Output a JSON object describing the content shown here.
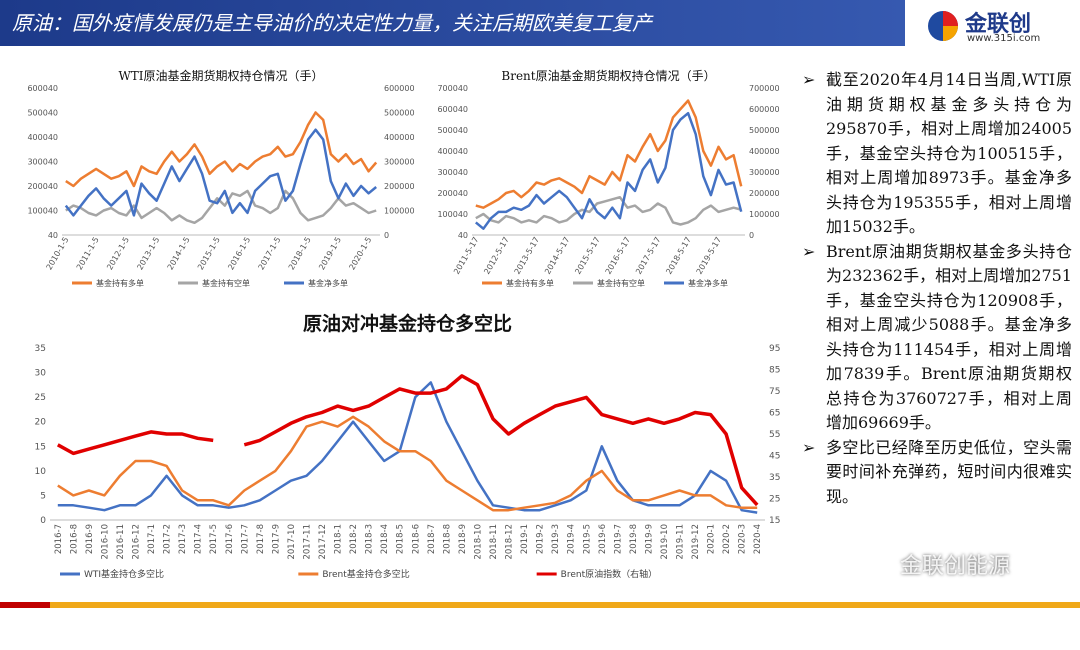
{
  "header": {
    "title": "原油：国外疫情发展仍是主导油价的决定性力量，关注后期欧美复工复产",
    "logo": "金联创",
    "site": "www.315i.com"
  },
  "bullets": [
    "截至2020年4月14日当周,WTI原油期货期权基金多头持仓为295870手，相对上周增加24005手，基金空头持仓为100515手，相对上周增加8973手。基金净多头持仓为195355手，相对上周增加15032手。",
    "Brent原油期货期权基金多头持仓为232362手，相对上周增加2751手，基金空头持仓为120908手，相对上周减少5088手。基金净多头持仓为111454手，相对上周增加7839手。Brent原油期货期权总持仓为3760727手，相对上周增加69669手。",
    "多空比已经降至历史低位，空头需要时间补充弹药，短时间内很难实现。"
  ],
  "watermark": "金联创能源",
  "chart_data": [
    {
      "type": "line",
      "title": "WTI原油基金期货期权持仓情况（手）",
      "categories": [
        "2010-1-5",
        null,
        null,
        null,
        "2011-1-5",
        null,
        null,
        null,
        "2012-1-5",
        null,
        null,
        null,
        "2013-1-5",
        null,
        null,
        null,
        "2014-1-5",
        null,
        null,
        null,
        "2015-1-5",
        null,
        null,
        null,
        "2016-1-5",
        null,
        null,
        null,
        "2017-1-5",
        null,
        null,
        null,
        "2018-1-5",
        null,
        null,
        null,
        "2019-1-5",
        null,
        null,
        null,
        "2020-1-5",
        null
      ],
      "ylim": [
        40,
        600040
      ],
      "yticks": [
        40,
        100040,
        200040,
        300040,
        400040,
        500040,
        600040
      ],
      "y2lim": [
        0,
        600000
      ],
      "y2ticks": [
        0,
        100000,
        200000,
        300000,
        400000,
        500000,
        600000
      ],
      "grid": false,
      "series": [
        {
          "name": "基金持有多单",
          "color": "#ed7d31",
          "values": [
            220000,
            200000,
            230000,
            250000,
            270000,
            250000,
            230000,
            240000,
            260000,
            200000,
            280000,
            260000,
            250000,
            300000,
            340000,
            300000,
            330000,
            370000,
            320000,
            250000,
            280000,
            300000,
            260000,
            290000,
            270000,
            300000,
            320000,
            330000,
            360000,
            320000,
            330000,
            380000,
            450000,
            500000,
            470000,
            330000,
            300000,
            330000,
            290000,
            310000,
            260000,
            296000
          ]
        },
        {
          "name": "基金持有空单",
          "color": "#a5a5a5",
          "values": [
            100000,
            120000,
            110000,
            90000,
            80000,
            100000,
            110000,
            90000,
            80000,
            120000,
            70000,
            90000,
            110000,
            90000,
            60000,
            80000,
            60000,
            50000,
            70000,
            110000,
            150000,
            120000,
            170000,
            160000,
            180000,
            120000,
            110000,
            90000,
            110000,
            180000,
            150000,
            90000,
            60000,
            70000,
            80000,
            110000,
            150000,
            120000,
            130000,
            110000,
            90000,
            100000
          ]
        },
        {
          "name": "基金净多单",
          "color": "#4472c4",
          "axis": "y2",
          "values": [
            120000,
            80000,
            120000,
            160000,
            190000,
            150000,
            120000,
            150000,
            180000,
            80000,
            210000,
            170000,
            140000,
            210000,
            280000,
            220000,
            270000,
            320000,
            250000,
            140000,
            130000,
            180000,
            90000,
            130000,
            90000,
            180000,
            210000,
            240000,
            250000,
            140000,
            180000,
            290000,
            390000,
            430000,
            390000,
            220000,
            150000,
            210000,
            160000,
            200000,
            170000,
            196000
          ]
        }
      ]
    },
    {
      "type": "line",
      "title": "Brent原油基金期货期权持仓情况（手）",
      "categories": [
        "2011-5-17",
        null,
        null,
        null,
        "2012-5-17",
        null,
        null,
        null,
        "2013-5-17",
        null,
        null,
        null,
        "2014-5-17",
        null,
        null,
        null,
        "2015-5-17",
        null,
        null,
        null,
        "2016-5-17",
        null,
        null,
        null,
        "2017-5-17",
        null,
        null,
        null,
        "2018-5-17",
        null,
        null,
        null,
        "2019-5-17",
        null,
        null,
        null
      ],
      "ylim": [
        40,
        700040
      ],
      "yticks": [
        40,
        100040,
        200040,
        300040,
        400040,
        500040,
        600040,
        700040
      ],
      "y2lim": [
        0,
        700000
      ],
      "y2ticks": [
        0,
        100000,
        200000,
        300000,
        400000,
        500000,
        600000,
        700000
      ],
      "grid": false,
      "series": [
        {
          "name": "基金持有多单",
          "color": "#ed7d31",
          "values": [
            140000,
            130000,
            150000,
            170000,
            200000,
            210000,
            180000,
            210000,
            250000,
            240000,
            260000,
            270000,
            250000,
            230000,
            200000,
            280000,
            260000,
            240000,
            300000,
            260000,
            380000,
            350000,
            420000,
            480000,
            400000,
            450000,
            560000,
            600000,
            640000,
            560000,
            400000,
            330000,
            420000,
            360000,
            380000,
            232000
          ]
        },
        {
          "name": "基金持有空单",
          "color": "#a5a5a5",
          "values": [
            80000,
            100000,
            70000,
            60000,
            90000,
            80000,
            60000,
            70000,
            60000,
            90000,
            80000,
            60000,
            70000,
            100000,
            120000,
            110000,
            150000,
            160000,
            170000,
            180000,
            130000,
            140000,
            110000,
            120000,
            150000,
            130000,
            60000,
            50000,
            60000,
            80000,
            120000,
            140000,
            110000,
            120000,
            130000,
            121000
          ]
        },
        {
          "name": "基金净多单",
          "color": "#4472c4",
          "axis": "y2",
          "values": [
            60000,
            30000,
            80000,
            110000,
            110000,
            130000,
            120000,
            140000,
            190000,
            150000,
            180000,
            210000,
            180000,
            130000,
            80000,
            170000,
            110000,
            80000,
            130000,
            80000,
            250000,
            210000,
            310000,
            360000,
            250000,
            320000,
            500000,
            550000,
            580000,
            480000,
            280000,
            190000,
            310000,
            240000,
            250000,
            111000
          ]
        }
      ]
    },
    {
      "type": "line",
      "title": "原油对冲基金持仓多空比",
      "categories": [
        "2016-7",
        "2016-8",
        "2016-9",
        "2016-10",
        "2016-11",
        "2016-12",
        "2017-1",
        "2017-2",
        "2017-3",
        "2017-4",
        "2017-5",
        "2017-6",
        "2017-7",
        "2017-8",
        "2017-9",
        "2017-10",
        "2017-11",
        "2017-12",
        "2018-1",
        "2018-2",
        "2018-3",
        "2018-4",
        "2018-5",
        "2018-6",
        "2018-7",
        "2018-8",
        "2018-9",
        "2018-10",
        "2018-11",
        "2018-12",
        "2019-1",
        "2019-2",
        "2019-3",
        "2019-4",
        "2019-5",
        "2019-6",
        "2019-7",
        "2019-8",
        "2019-9",
        "2019-10",
        "2019-11",
        "2019-12",
        "2020-1",
        "2020-2",
        "2020-3",
        "2020-4"
      ],
      "ylim": [
        0,
        35
      ],
      "yticks": [
        0,
        5,
        10,
        15,
        20,
        25,
        30,
        35
      ],
      "y2lim": [
        15,
        95
      ],
      "y2ticks": [
        15,
        25,
        35,
        45,
        55,
        65,
        75,
        85,
        95
      ],
      "grid": false,
      "series": [
        {
          "name": "WTI基金持仓多空比",
          "color": "#4472c4",
          "values": [
            3,
            3,
            2.5,
            2,
            3,
            3,
            5,
            9,
            5,
            3,
            3,
            2.5,
            3,
            4,
            6,
            8,
            9,
            12,
            16,
            20,
            16,
            12,
            14,
            25,
            28,
            20,
            14,
            8,
            3,
            2.5,
            2,
            2,
            3,
            4,
            6,
            15,
            8,
            4,
            3,
            3,
            3,
            5,
            10,
            8,
            2,
            1.5
          ]
        },
        {
          "name": "Brent基金持仓多空比",
          "color": "#ed7d31",
          "values": [
            7,
            5,
            6,
            5,
            9,
            12,
            12,
            11,
            6,
            4,
            4,
            3,
            6,
            8,
            10,
            14,
            19,
            20,
            19,
            21,
            19,
            16,
            14,
            14,
            12,
            8,
            6,
            4,
            2,
            2,
            2.5,
            3,
            3.5,
            5,
            8,
            10,
            6,
            4,
            4,
            5,
            6,
            5,
            5,
            3,
            2.5,
            2.5
          ]
        },
        {
          "name": "Brent原油指数（右轴）",
          "color": "#e00000",
          "axis": "y2",
          "values": [
            50,
            46,
            48,
            50,
            52,
            54,
            56,
            55,
            55,
            53,
            52,
            null,
            50,
            52,
            56,
            60,
            63,
            65,
            68,
            66,
            68,
            72,
            76,
            74,
            74,
            76,
            82,
            78,
            62,
            55,
            60,
            64,
            68,
            70,
            72,
            64,
            62,
            60,
            62,
            60,
            62,
            65,
            64,
            55,
            30,
            22
          ]
        }
      ]
    }
  ]
}
